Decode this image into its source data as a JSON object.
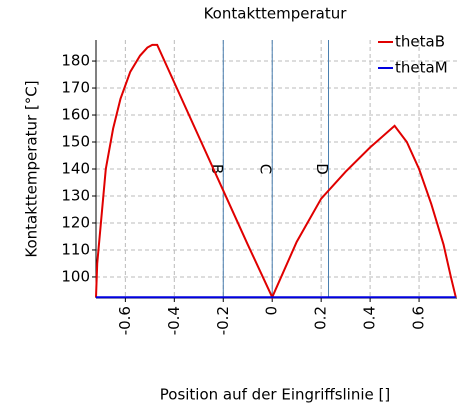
{
  "chart_data": {
    "type": "line",
    "title": "Kontakttemperatur",
    "x_label": "Position auf der Eingriffslinie []",
    "y_label": "Kontakttemperatur [°C]",
    "xlim": [
      -0.72,
      0.755
    ],
    "ylim": [
      92.2,
      187.8
    ],
    "xticks": [
      -0.6,
      -0.4,
      -0.2,
      0,
      0.2,
      0.4,
      0.6
    ],
    "yticks": [
      100,
      110,
      120,
      130,
      140,
      150,
      160,
      170,
      180
    ],
    "grid": true,
    "legend": "top-right",
    "series": [
      {
        "name": "thetaB",
        "color": "#e00000",
        "x": [
          -0.72,
          -0.715,
          -0.7,
          -0.68,
          -0.65,
          -0.62,
          -0.58,
          -0.54,
          -0.51,
          -0.49,
          -0.47,
          -0.4,
          -0.3,
          -0.2,
          -0.1,
          0,
          0.1,
          0.2,
          0.3,
          0.4,
          0.5,
          0.55,
          0.6,
          0.65,
          0.7,
          0.73,
          0.75
        ],
        "values": [
          92.5,
          105,
          120,
          140,
          155,
          166,
          176,
          182,
          185,
          186,
          186,
          172,
          152,
          132,
          112,
          92.5,
          113,
          129,
          139,
          148,
          156,
          150,
          140,
          127,
          112,
          100,
          92.5
        ]
      },
      {
        "name": "thetaM",
        "color": "#0000e0",
        "x": [
          -0.72,
          0.75
        ],
        "values": [
          92.5,
          92.5
        ]
      }
    ],
    "markers": [
      {
        "x": -0.2,
        "label": "B"
      },
      {
        "x": 0,
        "label": "C"
      },
      {
        "x": 0.23,
        "label": "D"
      }
    ],
    "marker_label_y": 140
  }
}
